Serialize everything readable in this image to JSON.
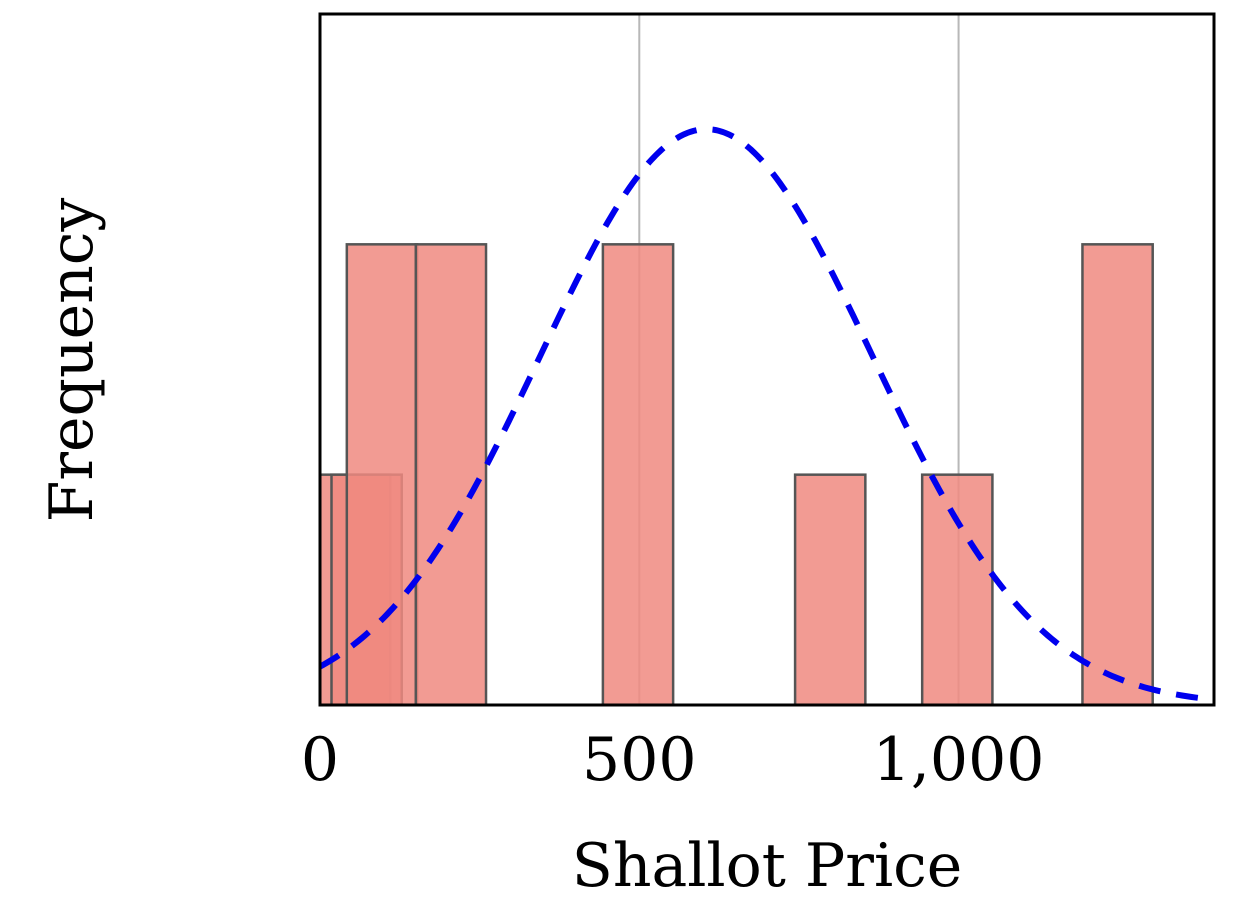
{
  "chart_data": {
    "type": "bar",
    "title": "",
    "xlabel": "Shallot Price",
    "ylabel": "Frequency",
    "xlim": [
      0,
      1400
    ],
    "ylim": [
      0,
      3
    ],
    "xticks": [
      0,
      500,
      1000
    ],
    "xtick_labels": [
      "0",
      "500",
      "1,000"
    ],
    "grid": "vertical lines at x ticks",
    "bars": [
      {
        "x0": 0,
        "x1": 110,
        "count": 1
      },
      {
        "x0": 18,
        "x1": 128,
        "count": 1
      },
      {
        "x0": 42,
        "x1": 152,
        "count": 2
      },
      {
        "x0": 150,
        "x1": 260,
        "count": 2
      },
      {
        "x0": 443,
        "x1": 553,
        "count": 2
      },
      {
        "x0": 744,
        "x1": 854,
        "count": 1
      },
      {
        "x0": 943,
        "x1": 1053,
        "count": 1
      },
      {
        "x0": 1194,
        "x1": 1304,
        "count": 2
      }
    ],
    "fit_curve": {
      "type": "normal",
      "mean": 605,
      "std": 260,
      "peak": 2.5,
      "style": "dashed",
      "color": "#0000ee"
    },
    "bar_color": "#f08a80",
    "bar_edge_color": "#555555"
  }
}
